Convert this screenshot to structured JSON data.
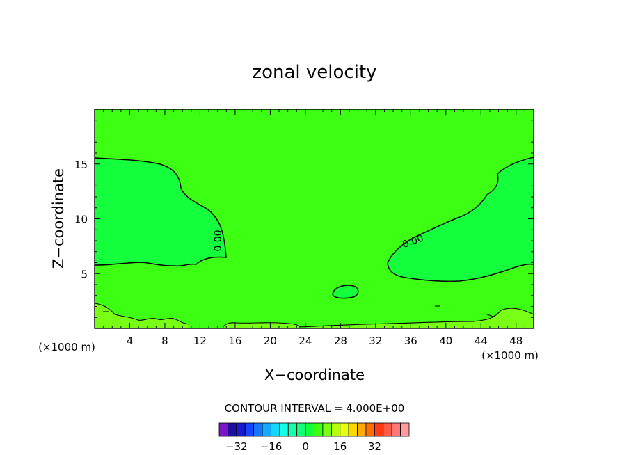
{
  "chart_data": {
    "type": "heatmap",
    "title": "zonal velocity",
    "xlabel": "X−coordinate",
    "ylabel": "Z−coordinate",
    "x_unit_label": "(×1000 m)",
    "x_unit_label_right": "(×1000 m)",
    "xlim": [
      0,
      50
    ],
    "ylim": [
      0,
      20
    ],
    "x_ticks": [
      4,
      8,
      12,
      16,
      20,
      24,
      28,
      32,
      36,
      40,
      44,
      48
    ],
    "x_tick_labels": [
      "4",
      "8",
      "12",
      "16",
      "20",
      "24",
      "28",
      "32",
      "36",
      "40",
      "44",
      "48"
    ],
    "y_ticks": [
      5,
      10,
      15
    ],
    "y_tick_labels": [
      "5",
      "10",
      "15"
    ],
    "contour_interval_text": "CONTOUR INTERVAL = 4.000E+00",
    "contour_labels": [
      "0.00",
      "0.00"
    ],
    "colorbar": {
      "colors": [
        "#7a16c8",
        "#1e0fa0",
        "#1a1ad2",
        "#1446ff",
        "#1478ff",
        "#14aaff",
        "#14d7ff",
        "#14ffe6",
        "#14ffaa",
        "#14ff78",
        "#14ff3c",
        "#3cff14",
        "#78ff14",
        "#b4ff14",
        "#e6ff14",
        "#ffd700",
        "#ffaa00",
        "#ff6e00",
        "#ff3c14",
        "#ff5a46",
        "#ff7878",
        "#ff9aa0"
      ],
      "tick_values": [
        -32,
        -16,
        0,
        16,
        32
      ],
      "tick_labels": [
        "−32",
        "−16",
        "0",
        "16",
        "32"
      ],
      "range": [
        -40,
        48
      ]
    },
    "field_fill_color": "#3cff14",
    "negative_region_color": "#14ff3c",
    "positive_patch_color": "#78ff14"
  }
}
